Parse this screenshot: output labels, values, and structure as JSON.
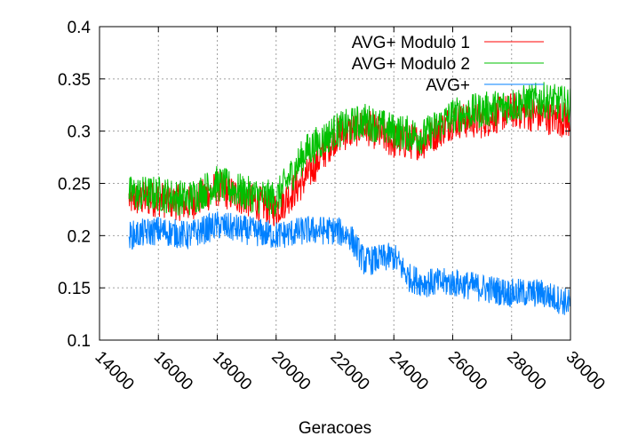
{
  "chart_data": {
    "type": "line",
    "title": "",
    "xlabel": "Geracoes",
    "ylabel": "",
    "xlim": [
      14000,
      30000
    ],
    "ylim": [
      0.1,
      0.4
    ],
    "xticks": [
      14000,
      16000,
      18000,
      20000,
      22000,
      24000,
      26000,
      28000,
      30000
    ],
    "yticks": [
      0.1,
      0.15,
      0.2,
      0.25,
      0.3,
      0.35,
      0.4
    ],
    "ytick_labels": [
      "0.1",
      "0.15",
      "0.2",
      "0.25",
      "0.3",
      "0.35",
      "0.4"
    ],
    "grid": true,
    "legend_position": "top-right",
    "x_start": 15000,
    "series": [
      {
        "name": "AVG+ Modulo 1",
        "color": "#ff0000",
        "x": [
          15000,
          16000,
          17000,
          18000,
          19000,
          20000,
          21000,
          22000,
          23000,
          24000,
          25000,
          26000,
          27000,
          28000,
          29000,
          30000
        ],
        "values": [
          0.235,
          0.235,
          0.23,
          0.245,
          0.235,
          0.225,
          0.255,
          0.295,
          0.305,
          0.29,
          0.29,
          0.31,
          0.31,
          0.32,
          0.315,
          0.31
        ]
      },
      {
        "name": "AVG+ Modulo 2",
        "color": "#00c000",
        "x": [
          15000,
          16000,
          17000,
          18000,
          19000,
          20000,
          21000,
          22000,
          23000,
          24000,
          25000,
          26000,
          27000,
          28000,
          29000,
          30000
        ],
        "values": [
          0.24,
          0.24,
          0.235,
          0.25,
          0.24,
          0.235,
          0.28,
          0.3,
          0.31,
          0.3,
          0.295,
          0.315,
          0.32,
          0.325,
          0.33,
          0.325
        ]
      },
      {
        "name": "AVG+",
        "color": "#0080ff",
        "x": [
          15000,
          16000,
          17000,
          18000,
          19000,
          20000,
          21000,
          22000,
          22500,
          23000,
          24000,
          24500,
          25000,
          26000,
          27000,
          28000,
          29000,
          30000
        ],
        "values": [
          0.2,
          0.205,
          0.2,
          0.21,
          0.205,
          0.2,
          0.205,
          0.205,
          0.2,
          0.175,
          0.18,
          0.16,
          0.155,
          0.155,
          0.15,
          0.145,
          0.145,
          0.135
        ]
      }
    ]
  }
}
